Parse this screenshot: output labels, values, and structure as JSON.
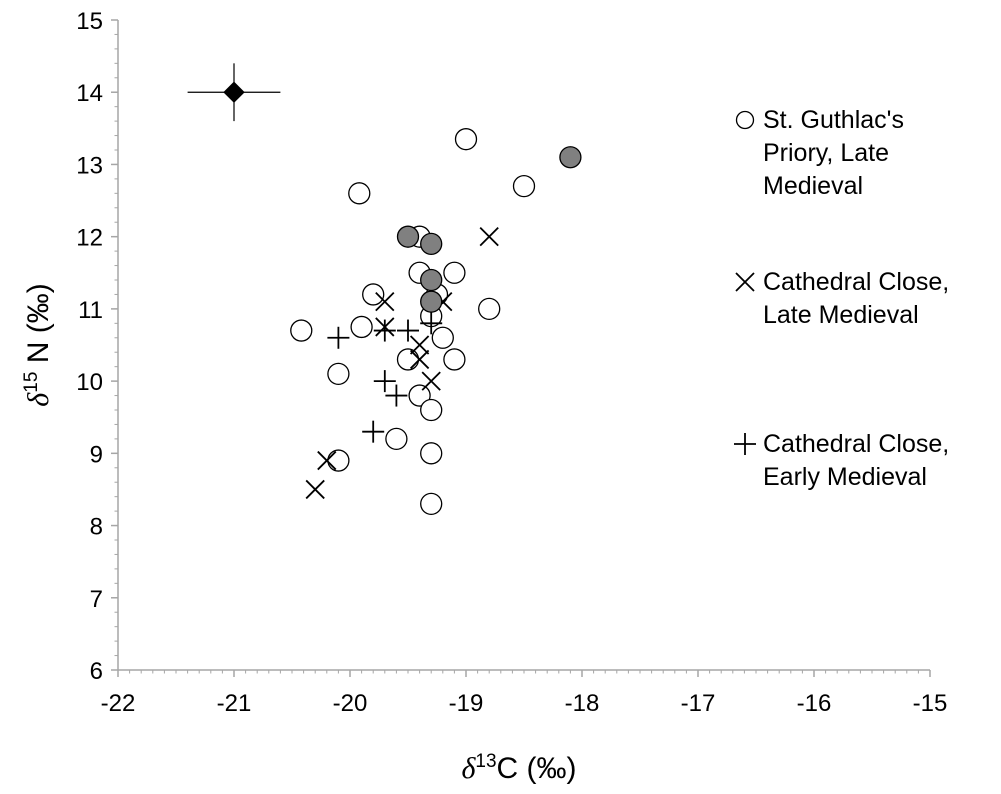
{
  "chart_data": {
    "type": "scatter",
    "title": "",
    "xlabel": {
      "prefix": "δ",
      "sup": "13",
      "suffix": "C (‰)"
    },
    "ylabel": {
      "prefix": "δ",
      "sup": "15",
      "suffix": " N (‰)"
    },
    "xlim": [
      -22,
      -15
    ],
    "ylim": [
      6,
      15
    ],
    "xticks": [
      "-22",
      "-21",
      "-20",
      "-19",
      "-18",
      "-17",
      "-16",
      "-15"
    ],
    "yticks": [
      "6",
      "7",
      "8",
      "9",
      "10",
      "11",
      "12",
      "13",
      "14",
      "15"
    ],
    "grid": false,
    "legend_position": "right",
    "series": [
      {
        "name": [
          "St. Guthlac's",
          "Priory, Late",
          "Medieval"
        ],
        "marker": "circle-open",
        "points": [
          [
            -19.0,
            13.35
          ],
          [
            -18.5,
            12.7
          ],
          [
            -19.92,
            12.6
          ],
          [
            -19.4,
            12.0
          ],
          [
            -19.1,
            11.5
          ],
          [
            -19.4,
            11.5
          ],
          [
            -19.8,
            11.2
          ],
          [
            -19.25,
            11.2
          ],
          [
            -18.8,
            11.0
          ],
          [
            -19.3,
            10.9
          ],
          [
            -19.9,
            10.75
          ],
          [
            -20.42,
            10.7
          ],
          [
            -19.2,
            10.6
          ],
          [
            -19.1,
            10.3
          ],
          [
            -19.5,
            10.3
          ],
          [
            -20.1,
            10.1
          ],
          [
            -19.4,
            9.8
          ],
          [
            -19.3,
            9.6
          ],
          [
            -19.6,
            9.2
          ],
          [
            -19.3,
            9.0
          ],
          [
            -20.1,
            8.9
          ],
          [
            -19.3,
            8.3
          ]
        ]
      },
      {
        "name": [
          "Cathedral Close,",
          "Late Medieval"
        ],
        "marker": "x",
        "points": [
          [
            -18.8,
            12.0
          ],
          [
            -19.7,
            11.1
          ],
          [
            -19.2,
            11.1
          ],
          [
            -19.7,
            10.75
          ],
          [
            -19.4,
            10.5
          ],
          [
            -19.4,
            10.3
          ],
          [
            -19.3,
            10.0
          ],
          [
            -20.2,
            8.9
          ],
          [
            -20.3,
            8.5
          ]
        ]
      },
      {
        "name": [
          "Cathedral Close,",
          "Early Medieval"
        ],
        "marker": "plus",
        "points": [
          [
            -19.3,
            10.8
          ],
          [
            -19.5,
            10.7
          ],
          [
            -19.7,
            10.7
          ],
          [
            -20.1,
            10.6
          ],
          [
            -19.7,
            10.0
          ],
          [
            -19.6,
            9.8
          ],
          [
            -19.8,
            9.3
          ]
        ]
      },
      {
        "marker": "circle-filled",
        "color": "#808080",
        "points": [
          [
            -18.1,
            13.1
          ],
          [
            -19.5,
            12.0
          ],
          [
            -19.3,
            11.9
          ],
          [
            -19.3,
            11.4
          ],
          [
            -19.3,
            11.1
          ]
        ]
      },
      {
        "marker": "diamond-filled",
        "color": "#000000",
        "points": [
          [
            -21.0,
            14.0
          ]
        ],
        "error": {
          "x": 0.4,
          "y": 0.4
        }
      }
    ]
  }
}
